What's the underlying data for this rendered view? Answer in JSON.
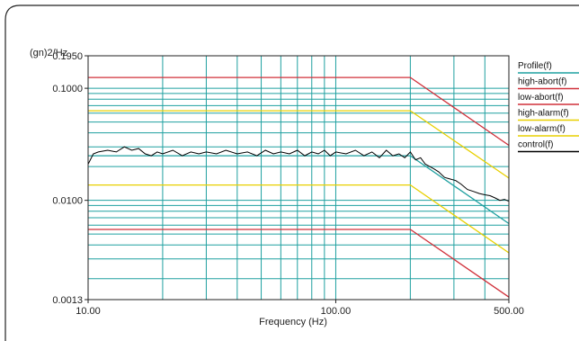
{
  "chart_data": {
    "type": "line",
    "title": "",
    "xlabel": "Frequency (Hz)",
    "ylabel": "(gn)2/Hz",
    "x_scale": "log",
    "y_scale": "log",
    "xlim": [
      10,
      500
    ],
    "ylim": [
      0.0013,
      0.195
    ],
    "x_tick_labels": [
      "10.00",
      "100.00",
      "500.00"
    ],
    "x_ticks": [
      10,
      100,
      500
    ],
    "y_tick_labels": [
      "0.1950",
      "0.1000",
      "0.0100",
      "0.0013"
    ],
    "y_ticks": [
      0.195,
      0.1,
      0.01,
      0.0013
    ],
    "grid": true,
    "legend_position": "right",
    "series": [
      {
        "name": "Profile(f)",
        "color": "#1fa0a0",
        "x": [
          10,
          200,
          500
        ],
        "y": [
          0.025,
          0.025,
          0.0062
        ]
      },
      {
        "name": "high-abort(f)",
        "color": "#d0303a",
        "x": [
          10,
          200,
          500
        ],
        "y": [
          0.125,
          0.125,
          0.031
        ]
      },
      {
        "name": "low-abort(f)",
        "color": "#d0303a",
        "x": [
          10,
          200,
          500
        ],
        "y": [
          0.0055,
          0.0055,
          0.00137
        ]
      },
      {
        "name": "high-alarm(f)",
        "color": "#e8d000",
        "x": [
          10,
          200,
          500
        ],
        "y": [
          0.063,
          0.063,
          0.0158
        ]
      },
      {
        "name": "low-alarm(f)",
        "color": "#e8d000",
        "x": [
          10,
          200,
          500
        ],
        "y": [
          0.0137,
          0.0137,
          0.0034
        ]
      },
      {
        "name": "control(f)",
        "color": "#000000",
        "x": [
          10,
          10.5,
          11,
          12,
          13,
          14,
          15,
          16,
          17,
          18,
          19,
          20,
          22,
          24,
          26,
          28,
          30,
          33,
          36,
          40,
          44,
          48,
          52,
          56,
          60,
          65,
          70,
          75,
          80,
          85,
          90,
          95,
          100,
          110,
          120,
          130,
          140,
          150,
          160,
          170,
          180,
          190,
          200,
          210,
          220,
          230,
          240,
          250,
          260,
          275,
          290,
          305,
          320,
          340,
          360,
          380,
          400,
          420,
          440,
          460,
          480,
          500
        ],
        "y": [
          0.021,
          0.026,
          0.027,
          0.028,
          0.027,
          0.03,
          0.028,
          0.029,
          0.026,
          0.025,
          0.027,
          0.026,
          0.028,
          0.025,
          0.027,
          0.026,
          0.027,
          0.026,
          0.028,
          0.026,
          0.027,
          0.025,
          0.028,
          0.026,
          0.027,
          0.026,
          0.028,
          0.025,
          0.027,
          0.026,
          0.028,
          0.025,
          0.027,
          0.026,
          0.028,
          0.025,
          0.027,
          0.024,
          0.028,
          0.025,
          0.026,
          0.024,
          0.027,
          0.023,
          0.024,
          0.021,
          0.02,
          0.019,
          0.018,
          0.016,
          0.0155,
          0.015,
          0.014,
          0.0125,
          0.012,
          0.0115,
          0.0112,
          0.011,
          0.0105,
          0.01,
          0.0102,
          0.0098
        ]
      }
    ]
  }
}
